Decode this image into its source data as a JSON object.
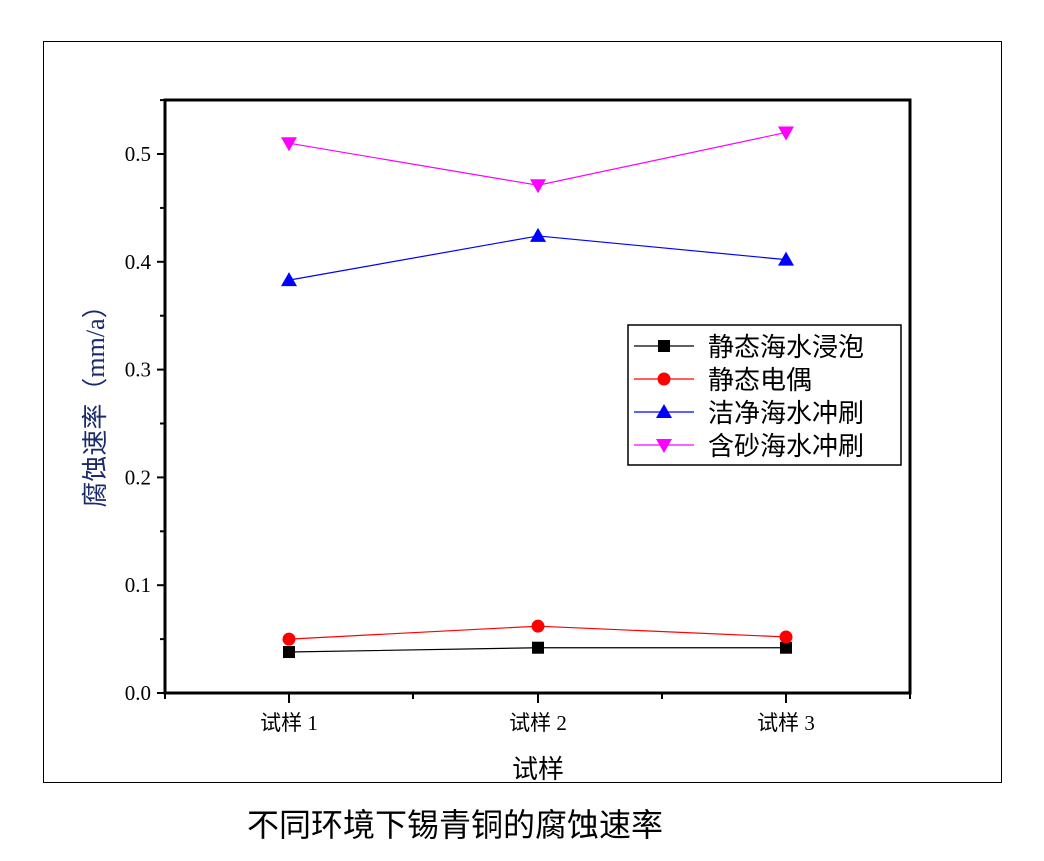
{
  "chart_data": {
    "type": "line",
    "caption": "不同环境下锡青铜的腐蚀速率",
    "xlabel": "试样",
    "ylabel": "腐蚀速率（mm/a）",
    "categories": [
      "试样 1",
      "试样 2",
      "试样 3"
    ],
    "ylim": [
      0,
      0.55
    ],
    "yticks": [
      "0.0",
      "0.1",
      "0.2",
      "0.3",
      "0.4",
      "0.5"
    ],
    "grid": false,
    "legend_position": "right-middle",
    "series": [
      {
        "name": "静态海水浸泡",
        "values": [
          0.038,
          0.042,
          0.042
        ],
        "color": "#000000",
        "marker": "square"
      },
      {
        "name": "静态电偶",
        "values": [
          0.05,
          0.062,
          0.052
        ],
        "color": "#ff0000",
        "marker": "circle"
      },
      {
        "name": "洁净海水冲刷",
        "values": [
          0.383,
          0.424,
          0.402
        ],
        "color": "#0000ff",
        "marker": "triangle-up"
      },
      {
        "name": "含砂海水冲刷",
        "values": [
          0.51,
          0.471,
          0.52
        ],
        "color": "#ff00ff",
        "marker": "triangle-down"
      }
    ]
  }
}
